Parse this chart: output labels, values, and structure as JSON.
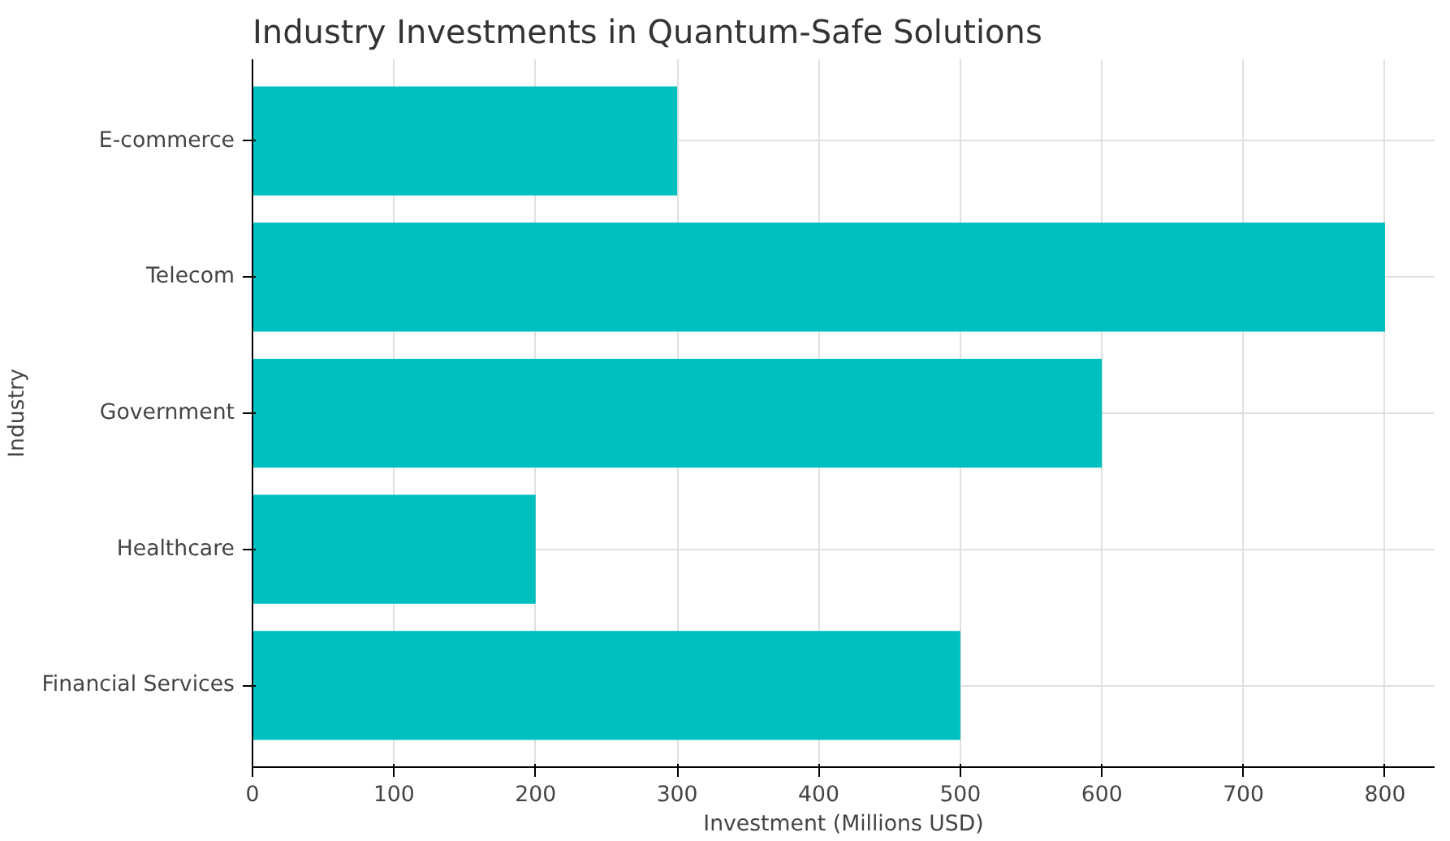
{
  "chart_data": {
    "type": "bar",
    "orientation": "horizontal",
    "title": "Industry Investments in Quantum-Safe Solutions",
    "xlabel": "Investment (Millions USD)",
    "ylabel": "Industry",
    "categories": [
      "E-commerce",
      "Telecom",
      "Government",
      "Healthcare",
      "Financial Services"
    ],
    "values": [
      300,
      800,
      600,
      200,
      500
    ],
    "color": "#00bfbf",
    "xlim": [
      0,
      835
    ],
    "xticks": [
      0,
      100,
      200,
      300,
      400,
      500,
      600,
      700,
      800
    ],
    "grid": true
  }
}
